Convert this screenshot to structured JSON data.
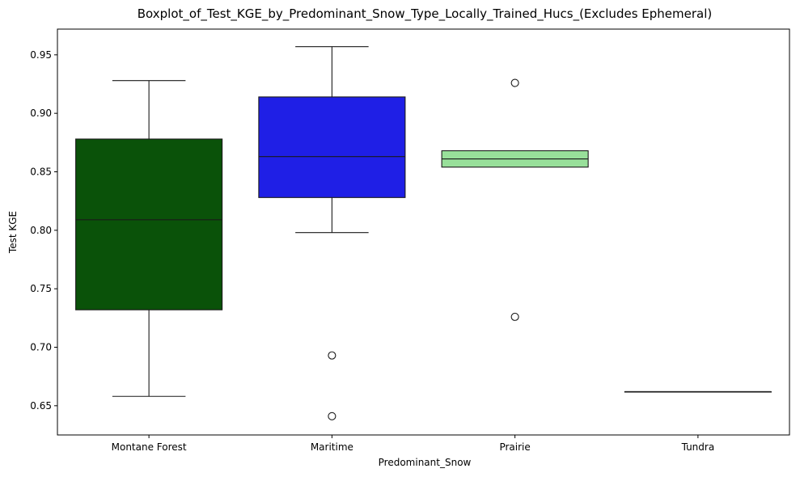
{
  "chart_data": {
    "type": "boxplot",
    "title": "Boxplot_of_Test_KGE_by_Predominant_Snow_Type_Locally_Trained_Hucs_(Excludes Ephemeral)",
    "xlabel": "Predominant_Snow",
    "ylabel": "Test KGE",
    "ylim": [
      0.625,
      0.972
    ],
    "yticks": [
      0.65,
      0.7,
      0.75,
      0.8,
      0.85,
      0.9,
      0.95
    ],
    "ytick_labels": [
      "0.65",
      "0.70",
      "0.75",
      "0.80",
      "0.85",
      "0.90",
      "0.95"
    ],
    "grid": false,
    "categories": [
      "Montane Forest",
      "Maritime",
      "Prairie",
      "Tundra"
    ],
    "boxes": [
      {
        "category": "Montane Forest",
        "color": "#0a5209",
        "whisker_low": 0.658,
        "q1": 0.732,
        "median": 0.809,
        "q3": 0.878,
        "whisker_high": 0.928,
        "outliers": []
      },
      {
        "category": "Maritime",
        "color": "#1f1fe6",
        "whisker_low": 0.798,
        "q1": 0.828,
        "median": 0.863,
        "q3": 0.914,
        "whisker_high": 0.957,
        "outliers": [
          0.693,
          0.641
        ]
      },
      {
        "category": "Prairie",
        "color": "#98e09a",
        "whisker_low": 0.854,
        "q1": 0.854,
        "median": 0.861,
        "q3": 0.868,
        "whisker_high": 0.868,
        "outliers": [
          0.926,
          0.726
        ]
      },
      {
        "category": "Tundra",
        "color": "#555555",
        "whisker_low": 0.662,
        "q1": 0.662,
        "median": 0.662,
        "q3": 0.662,
        "whisker_high": 0.662,
        "outliers": []
      }
    ]
  }
}
